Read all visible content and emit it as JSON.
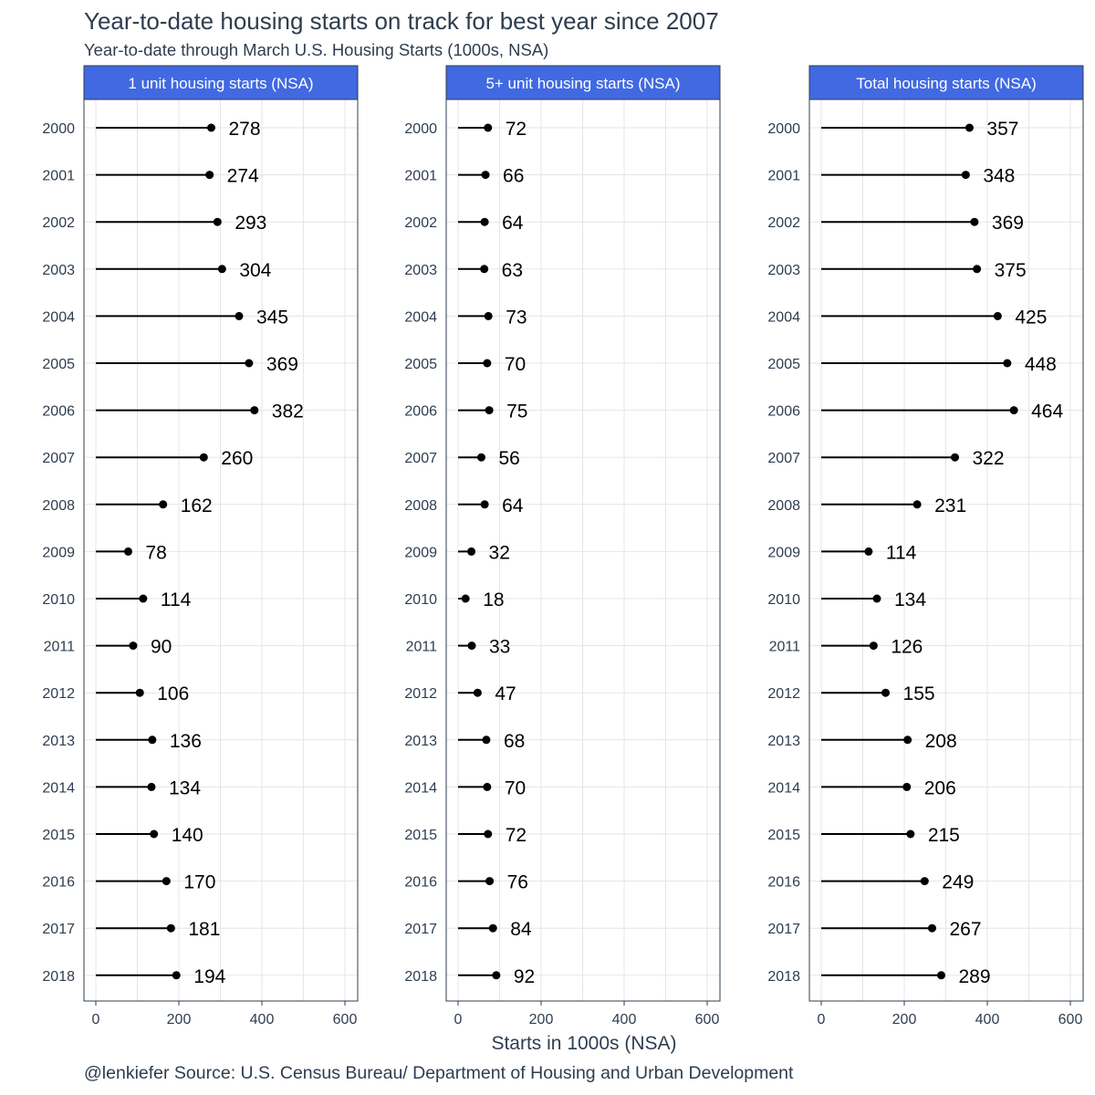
{
  "title": "Year-to-date housing starts on track for best year since 2007",
  "subtitle": "Year-to-date through March U.S. Housing Starts (1000s, NSA)",
  "caption": "@lenkiefer Source: U.S. Census Bureau/ Department of Housing and Urban Development",
  "colors": {
    "strip_fill": "#4169e1",
    "text": "#2e3d4f",
    "grid": "#e5e5e5",
    "panel_border": "#2e3d4f",
    "marks": "#000000"
  },
  "chart_data": {
    "type": "lollipop",
    "xlabel": "Starts in 1000s (NSA)",
    "ylabel": "",
    "xlim": [
      0,
      600
    ],
    "xticks": [
      0,
      200,
      400,
      600
    ],
    "grid": true,
    "categories": [
      "2000",
      "2001",
      "2002",
      "2003",
      "2004",
      "2005",
      "2006",
      "2007",
      "2008",
      "2009",
      "2010",
      "2011",
      "2012",
      "2013",
      "2014",
      "2015",
      "2016",
      "2017",
      "2018"
    ],
    "panels": [
      {
        "name": "1 unit housing starts (NSA)",
        "values": [
          278,
          274,
          293,
          304,
          345,
          369,
          382,
          260,
          162,
          78,
          114,
          90,
          106,
          136,
          134,
          140,
          170,
          181,
          194
        ]
      },
      {
        "name": "5+ unit housing starts (NSA)",
        "values": [
          72,
          66,
          64,
          63,
          73,
          70,
          75,
          56,
          64,
          32,
          18,
          33,
          47,
          68,
          70,
          72,
          76,
          84,
          92
        ]
      },
      {
        "name": "Total housing starts (NSA)",
        "values": [
          357,
          348,
          369,
          375,
          425,
          448,
          464,
          322,
          231,
          114,
          134,
          126,
          155,
          208,
          206,
          215,
          249,
          267,
          289
        ]
      }
    ]
  }
}
